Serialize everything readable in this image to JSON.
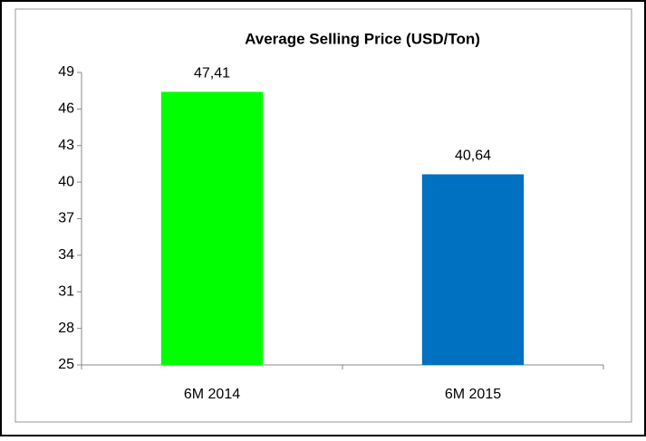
{
  "chart_data": {
    "type": "bar",
    "title": "Average Selling Price (USD/Ton)",
    "categories": [
      "6M 2014",
      "6M 2015"
    ],
    "values": [
      47.41,
      40.64
    ],
    "value_labels": [
      "47,41",
      "40,64"
    ],
    "colors": [
      "#00ff00",
      "#0070c0"
    ],
    "ylim": [
      25,
      49
    ],
    "yticks": [
      25,
      28,
      31,
      34,
      37,
      40,
      43,
      46,
      49
    ],
    "grid": false
  }
}
